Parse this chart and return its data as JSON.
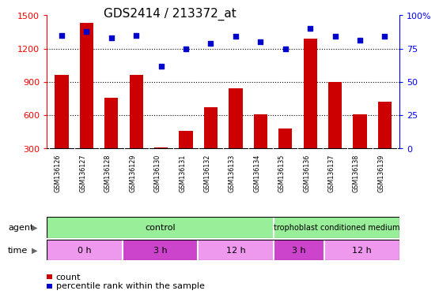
{
  "title": "GDS2414 / 213372_at",
  "samples": [
    "GSM136126",
    "GSM136127",
    "GSM136128",
    "GSM136129",
    "GSM136130",
    "GSM136131",
    "GSM136132",
    "GSM136133",
    "GSM136134",
    "GSM136135",
    "GSM136136",
    "GSM136137",
    "GSM136138",
    "GSM136139"
  ],
  "counts": [
    960,
    1430,
    760,
    960,
    310,
    460,
    670,
    840,
    610,
    480,
    1290,
    900,
    610,
    720
  ],
  "percentile_ranks": [
    85,
    88,
    83,
    85,
    62,
    75,
    79,
    84,
    80,
    75,
    90,
    84,
    81,
    84
  ],
  "ylim_left": [
    300,
    1500
  ],
  "ylim_right": [
    0,
    100
  ],
  "yticks_left": [
    300,
    600,
    900,
    1200,
    1500
  ],
  "yticks_right": [
    0,
    25,
    50,
    75,
    100
  ],
  "ytick_labels_right": [
    "0",
    "25",
    "50",
    "75",
    "100%"
  ],
  "bar_color": "#cc0000",
  "dot_color": "#0000cc",
  "bar_width": 0.55,
  "grid_color": "#000000",
  "background_color": "#ffffff",
  "plot_bg_color": "#ffffff",
  "title_fontsize": 11,
  "tick_fontsize": 8,
  "label_fontsize": 7.5,
  "agent_color_control": "#99ee99",
  "agent_color_tcm": "#99ee99",
  "time_color_light": "#ee99ee",
  "time_color_dark": "#cc44cc",
  "xtick_bg_color": "#d8d8d8",
  "agent_label_x": "agent",
  "time_label_x": "time",
  "control_label": "control",
  "tcm_label": "trophoblast conditioned medium",
  "time_labels": [
    "0 h",
    "3 h",
    "12 h",
    "3 h",
    "12 h"
  ],
  "time_counts": [
    3,
    3,
    3,
    2,
    3
  ],
  "control_count": 9,
  "legend_count_label": "count",
  "legend_pct_label": "percentile rank within the sample"
}
